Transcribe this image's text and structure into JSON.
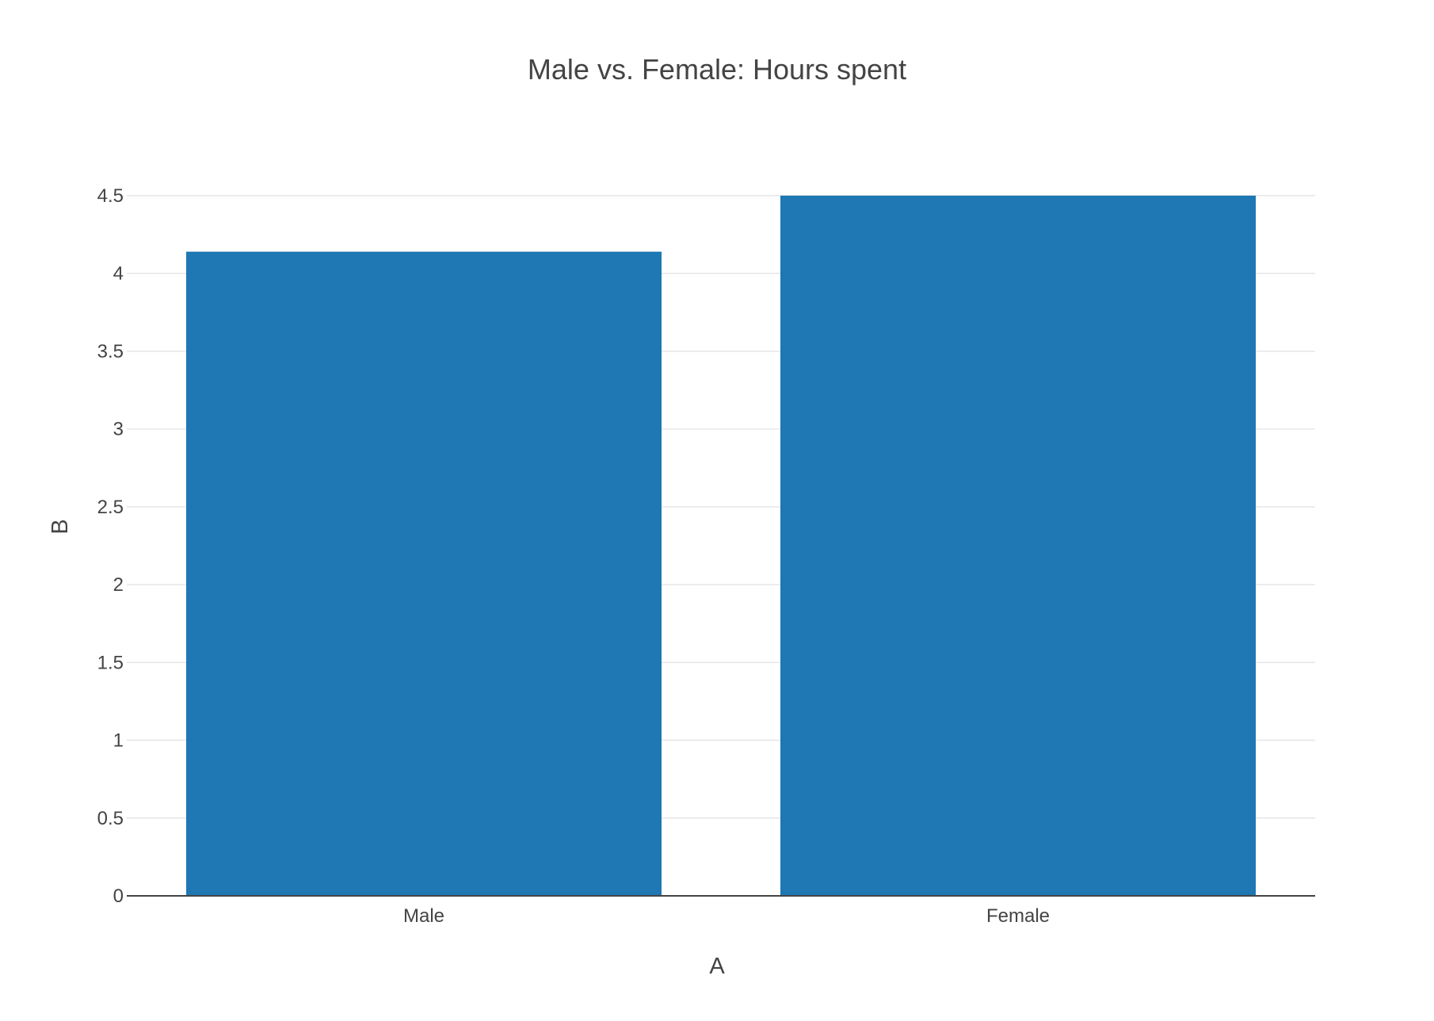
{
  "chart_data": {
    "type": "bar",
    "title": "Male vs. Female: Hours spent",
    "xlabel": "A",
    "ylabel": "B",
    "categories": [
      "Male",
      "Female"
    ],
    "values": [
      4.14,
      4.5
    ],
    "ylim": [
      0,
      4.5
    ],
    "yticks": [
      0,
      0.5,
      1,
      1.5,
      2,
      2.5,
      3,
      3.5,
      4,
      4.5
    ],
    "ytick_labels": [
      "0",
      "0.5",
      "1",
      "1.5",
      "2",
      "2.5",
      "3",
      "3.5",
      "4",
      "4.5"
    ],
    "bar_color": "#1f77b4",
    "grid": true,
    "legend": "none"
  }
}
